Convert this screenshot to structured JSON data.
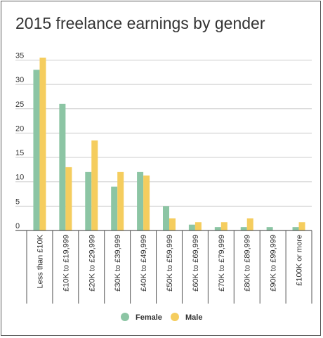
{
  "chart_data": {
    "type": "bar",
    "title": "2015 freelance earnings by gender",
    "categories": [
      "Less than £10K",
      "£10K to £19,999",
      "£20K to £29,999",
      "£30K to £39,999",
      "£40K to £49,999",
      "£50K to £59,999",
      "£60K to £69,999",
      "£70K to £79,999",
      "£80K to £89,999",
      "£90K to £99,999",
      "£100K or more"
    ],
    "series": [
      {
        "name": "Female",
        "color": "#8cc5a4",
        "values": [
          33,
          26,
          12,
          9,
          12,
          5,
          1.2,
          0.7,
          0.7,
          0.7,
          0.7
        ]
      },
      {
        "name": "Male",
        "color": "#f5cd5e",
        "values": [
          35.5,
          13,
          18.5,
          12,
          11.3,
          2.5,
          1.7,
          1.7,
          2.5,
          0,
          1.7
        ]
      }
    ],
    "yticks": [
      0,
      5,
      10,
      15,
      20,
      25,
      30,
      35
    ],
    "ylim": [
      0,
      35.5
    ],
    "grid": true,
    "legend_position": "bottom"
  }
}
